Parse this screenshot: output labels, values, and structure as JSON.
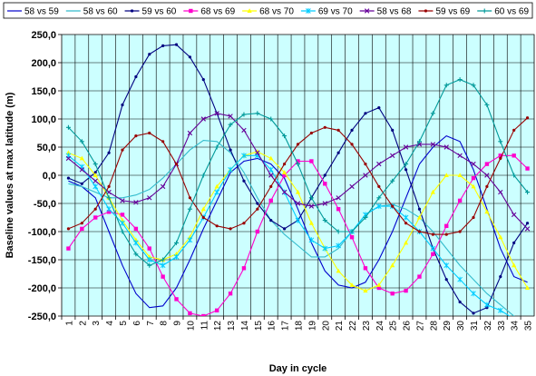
{
  "chart_data": {
    "type": "line",
    "title": "",
    "xlabel": "Day in cycle",
    "ylabel": "Baseline values at max latitude (m)",
    "ylim": [
      -250,
      250
    ],
    "yticks": [
      -250,
      -200,
      -150,
      -100,
      -50,
      0,
      50,
      100,
      150,
      200,
      250
    ],
    "ytick_labels": [
      "-250,0",
      "-200,0",
      "-150,0",
      "-100,0",
      "-50,0",
      "0,0",
      "50,0",
      "100,0",
      "150,0",
      "200,0",
      "250,0"
    ],
    "categories": [
      1,
      2,
      3,
      4,
      5,
      6,
      7,
      8,
      9,
      10,
      11,
      12,
      13,
      14,
      15,
      16,
      17,
      18,
      19,
      20,
      21,
      22,
      23,
      24,
      25,
      26,
      27,
      28,
      29,
      30,
      31,
      32,
      33,
      34,
      35
    ],
    "plot_background": "#ccffff",
    "grid": true,
    "legend_position": "top",
    "series": [
      {
        "name": "58 vs 59",
        "color": "#0000cc",
        "marker": "none",
        "values": [
          -10,
          -20,
          -40,
          -100,
          -160,
          -210,
          -235,
          -232,
          -200,
          -150,
          -95,
          -45,
          5,
          25,
          30,
          20,
          -5,
          -60,
          -120,
          -170,
          -195,
          -200,
          -190,
          -150,
          -100,
          -40,
          20,
          50,
          70,
          60,
          10,
          -60,
          -130,
          -180,
          -190
        ]
      },
      {
        "name": "58 vs 60",
        "color": "#33bbcc",
        "marker": "none",
        "values": [
          -15,
          -20,
          -30,
          -40,
          -40,
          -35,
          -25,
          -5,
          20,
          45,
          62,
          60,
          40,
          5,
          -40,
          -80,
          -105,
          -125,
          -145,
          -145,
          -130,
          -100,
          -70,
          -55,
          -52,
          -60,
          -75,
          -100,
          -130,
          -160,
          -185,
          -210,
          -230,
          -250,
          -270
        ]
      },
      {
        "name": "59 vs 60",
        "color": "#000080",
        "marker": "dot",
        "values": [
          -5,
          -15,
          5,
          40,
          125,
          175,
          215,
          230,
          232,
          210,
          170,
          110,
          45,
          -10,
          -50,
          -80,
          -95,
          -80,
          -40,
          0,
          40,
          80,
          110,
          120,
          80,
          10,
          -60,
          -130,
          -185,
          -225,
          -245,
          -235,
          -180,
          -120,
          -85
        ]
      },
      {
        "name": "68 vs 69",
        "color": "#ff00cc",
        "marker": "square",
        "values": [
          -130,
          -95,
          -75,
          -65,
          -70,
          -95,
          -130,
          -180,
          -220,
          -245,
          -250,
          -240,
          -210,
          -165,
          -100,
          -45,
          0,
          25,
          25,
          -15,
          -60,
          -110,
          -165,
          -200,
          -210,
          -205,
          -180,
          -140,
          -90,
          -45,
          -5,
          20,
          35,
          35,
          12
        ]
      },
      {
        "name": "68 vs 70",
        "color": "#ffff00",
        "marker": "triangle",
        "values": [
          40,
          30,
          0,
          -40,
          -80,
          -115,
          -145,
          -150,
          -140,
          -110,
          -60,
          -20,
          10,
          35,
          42,
          30,
          5,
          -30,
          -85,
          -130,
          -170,
          -195,
          -205,
          -195,
          -160,
          -120,
          -75,
          -30,
          0,
          0,
          -20,
          -65,
          -110,
          -160,
          -200
        ]
      },
      {
        "name": "69 vs 70",
        "color": "#00ccff",
        "marker": "star",
        "values": [
          35,
          15,
          -20,
          -60,
          -85,
          -120,
          -150,
          -160,
          -145,
          -115,
          -75,
          -30,
          10,
          35,
          35,
          10,
          -30,
          -80,
          -115,
          -130,
          -125,
          -100,
          -70,
          -55,
          -55,
          -75,
          -100,
          -130,
          -160,
          -185,
          -210,
          -230,
          -240,
          -255,
          -270
        ]
      },
      {
        "name": "58 vs 68",
        "color": "#660099",
        "marker": "x",
        "values": [
          30,
          10,
          -10,
          -30,
          -45,
          -48,
          -40,
          -20,
          20,
          75,
          100,
          110,
          105,
          80,
          40,
          0,
          -30,
          -50,
          -55,
          -50,
          -40,
          -20,
          0,
          20,
          35,
          50,
          55,
          55,
          50,
          35,
          20,
          0,
          -30,
          -70,
          -95
        ]
      },
      {
        "name": "59 vs 69",
        "color": "#990000",
        "marker": "dot",
        "values": [
          -95,
          -85,
          -60,
          -20,
          45,
          70,
          75,
          60,
          20,
          -40,
          -75,
          -90,
          -95,
          -85,
          -60,
          -20,
          20,
          55,
          75,
          85,
          80,
          55,
          20,
          -20,
          -55,
          -85,
          -100,
          -105,
          -105,
          -100,
          -75,
          -20,
          30,
          80,
          102
        ]
      },
      {
        "name": "60 vs 69",
        "color": "#009999",
        "marker": "plus",
        "values": [
          85,
          60,
          20,
          -40,
          -100,
          -140,
          -160,
          -150,
          -120,
          -60,
          0,
          50,
          90,
          108,
          110,
          100,
          70,
          20,
          -40,
          -80,
          -100,
          -100,
          -75,
          -40,
          -10,
          20,
          60,
          110,
          160,
          170,
          160,
          125,
          60,
          0,
          -30
        ]
      }
    ]
  }
}
